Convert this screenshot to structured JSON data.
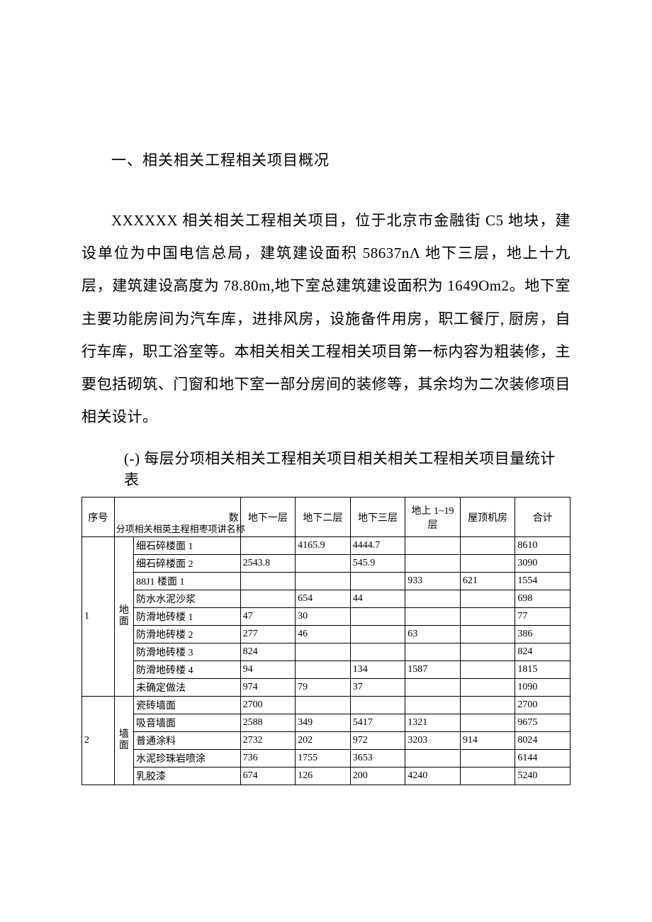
{
  "doc": {
    "section_title": "一、相关相关工程相关项目概况",
    "paragraph": "XXXXXX 相关相关工程相关项目，位于北京市金融街 C5 地块，建设单位为中国电信总局，建筑建设面积 58637nΛ 地下三层，地上十九层，建筑建设高度为 78.80m,地下室总建筑建设面积为 1649Om2。地下室主要功能房间为汽车库，进排风房，设施备件用房，职工餐厅, 厨房，自行车库，职工浴室等。本相关相关工程相关项目第一标内容为粗装修，主要包括砌筑、门窗和地下室一部分房间的装修等，其余均为二次装修项目相关设计。",
    "subsection_title": "(-) 每层分项相关相关工程相关项目相关相关工程相关项目量统计表"
  },
  "table": {
    "headers": {
      "seq": "序号",
      "sub_num": "数",
      "sub_name": "分项相关相英主程相枣项讲名称",
      "c1": "地下一层",
      "c2": "地下二层",
      "c3": "地下三层",
      "c4": "地上 1~19 层",
      "c5": "屋顶机房",
      "c6": "合计"
    },
    "groups": [
      {
        "seq": "1",
        "category": "地面",
        "rows": [
          {
            "name": "细石碎楼面 1",
            "v": [
              "",
              "4165.9",
              "4444.7",
              "",
              "",
              "8610"
            ]
          },
          {
            "name": "细石碎楼面 2",
            "v": [
              "2543.8",
              "",
              "545.9",
              "",
              "",
              "3090"
            ]
          },
          {
            "name": "88J1 楼面 1",
            "v": [
              "",
              "",
              "",
              "933",
              "621",
              "1554"
            ]
          },
          {
            "name": "防水水泥沙浆",
            "v": [
              "",
              "654",
              "44",
              "",
              "",
              "698"
            ]
          },
          {
            "name": "防滑地砖楼 1",
            "v": [
              "47",
              "30",
              "",
              "",
              "",
              "77"
            ]
          },
          {
            "name": "防滑地砖楼 2",
            "v": [
              "277",
              "46",
              "",
              "63",
              "",
              "386"
            ]
          },
          {
            "name": "防滑地砖楼 3",
            "v": [
              "824",
              "",
              "",
              "",
              "",
              "824"
            ]
          },
          {
            "name": "防滑地砖楼 4",
            "v": [
              "94",
              "",
              "134",
              "1587",
              "",
              "1815"
            ]
          },
          {
            "name": "未确定做法",
            "v": [
              "974",
              "79",
              "37",
              "",
              "",
              "1090"
            ]
          }
        ]
      },
      {
        "seq": "2",
        "category": "墙面",
        "rows": [
          {
            "name": "瓷砖墙面",
            "v": [
              "2700",
              "",
              "",
              "",
              "",
              "2700"
            ]
          },
          {
            "name": "吸音墙面",
            "v": [
              "2588",
              "349",
              "5417",
              "1321",
              "",
              "9675"
            ]
          },
          {
            "name": "普通涂料",
            "v": [
              "2732",
              "202",
              "972",
              "3203",
              "914",
              "8024"
            ]
          },
          {
            "name": "水泥珍珠岩喷涂",
            "v": [
              "736",
              "1755",
              "3653",
              "",
              "",
              "6144"
            ]
          },
          {
            "name": "乳胶漆",
            "v": [
              "674",
              "126",
              "200",
              "4240",
              "",
              "5240"
            ]
          }
        ]
      }
    ]
  }
}
